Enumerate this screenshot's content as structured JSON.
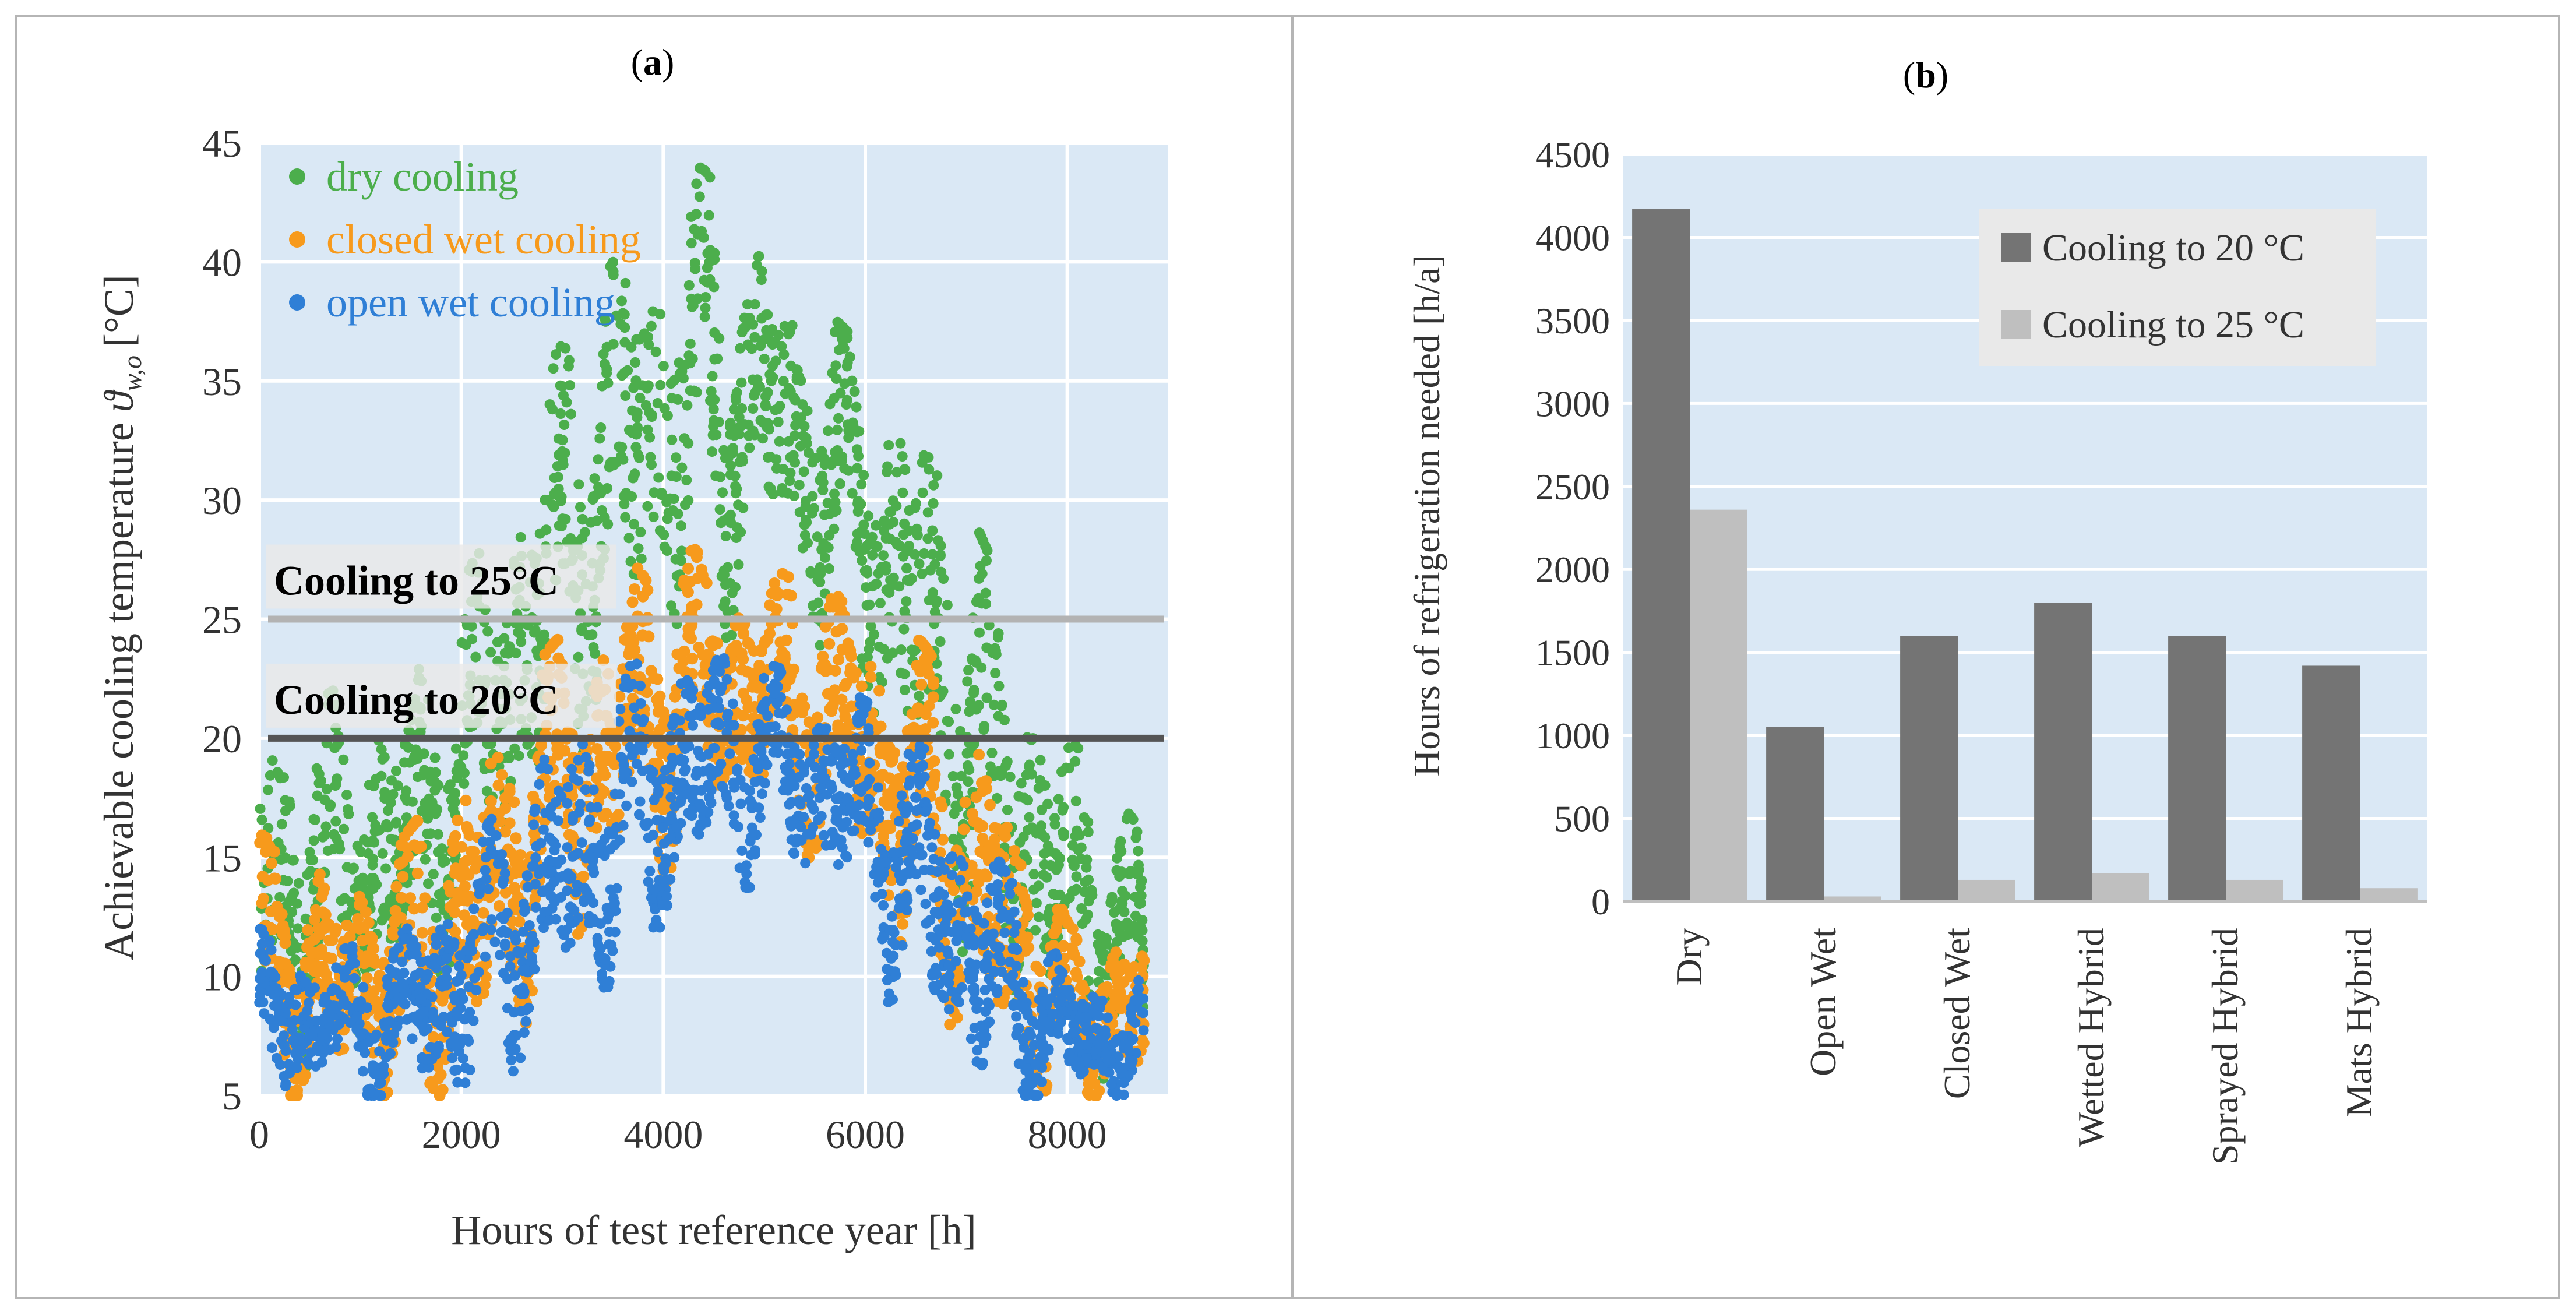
{
  "chart_data": [
    {
      "type": "scatter",
      "panel_label": "a",
      "xlabel": "Hours of test reference year [h]",
      "ylabel_main": "Achievable cooling temperature",
      "ylabel_symbol": "ϑ",
      "ylabel_subscript": "w,o",
      "ylabel_unit": "[°C]",
      "xlim": [
        0,
        9000
      ],
      "ylim": [
        5,
        45
      ],
      "xticks": [
        "0",
        "2000",
        "4000",
        "6000",
        "8000"
      ],
      "yticks": [
        "5",
        "10",
        "15",
        "20",
        "25",
        "30",
        "35",
        "40",
        "45"
      ],
      "legend_position": "top-left",
      "grid": true,
      "series": [
        {
          "name": "dry cooling",
          "color": "#4cae4c",
          "envelope_low": [
            7,
            7,
            9,
            13,
            18,
            24,
            25,
            27,
            23,
            16,
            9,
            8,
            6
          ],
          "envelope_high": [
            20,
            22,
            22,
            28,
            36,
            41,
            44,
            40,
            37,
            34,
            27,
            20,
            16
          ]
        },
        {
          "name": "closed wet cooling",
          "color": "#f79a1c",
          "envelope_low": [
            5,
            5,
            5,
            6,
            11,
            14,
            17,
            17,
            15,
            10,
            6,
            5,
            5
          ],
          "envelope_high": [
            16,
            14,
            16,
            20,
            24,
            27,
            28,
            27,
            26,
            24,
            19,
            12,
            12
          ]
        },
        {
          "name": "open wet cooling",
          "color": "#2f7fd6",
          "envelope_low": [
            5,
            5,
            5,
            5,
            8,
            11,
            14,
            15,
            13,
            8,
            5,
            5,
            5
          ],
          "envelope_high": [
            12,
            11,
            12,
            16,
            20,
            23,
            24,
            23,
            22,
            20,
            15,
            10,
            10
          ]
        }
      ],
      "envelope_x": [
        0,
        730,
        1460,
        2190,
        2920,
        3650,
        4380,
        5110,
        5840,
        6570,
        7300,
        8030,
        8760
      ],
      "reference_lines": [
        {
          "label": "Cooling to 25°C",
          "value": 25,
          "color": "#b3b3b3"
        },
        {
          "label": "Cooling to 20°C",
          "value": 20,
          "color": "#555555"
        }
      ]
    },
    {
      "type": "bar",
      "panel_label": "b",
      "ylabel": "Hours of refrigeration needed [h/a]",
      "ylim": [
        0,
        4500
      ],
      "yticks": [
        "0",
        "500",
        "1000",
        "1500",
        "2000",
        "2500",
        "3000",
        "3500",
        "4000",
        "4500"
      ],
      "categories": [
        "Dry",
        "Open Wet",
        "Closed Wet",
        "Wetted Hybrid",
        "Sprayed Hybrid",
        "Mats Hybrid"
      ],
      "legend_position": "top-right",
      "grid": true,
      "series": [
        {
          "name": "Cooling to 20 °C",
          "color": "#747474",
          "values": [
            4170,
            1050,
            1600,
            1800,
            1600,
            1420
          ]
        },
        {
          "name": "Cooling to 25 °C",
          "color": "#bfbfbf",
          "values": [
            2360,
            30,
            130,
            170,
            130,
            80
          ]
        }
      ]
    }
  ]
}
